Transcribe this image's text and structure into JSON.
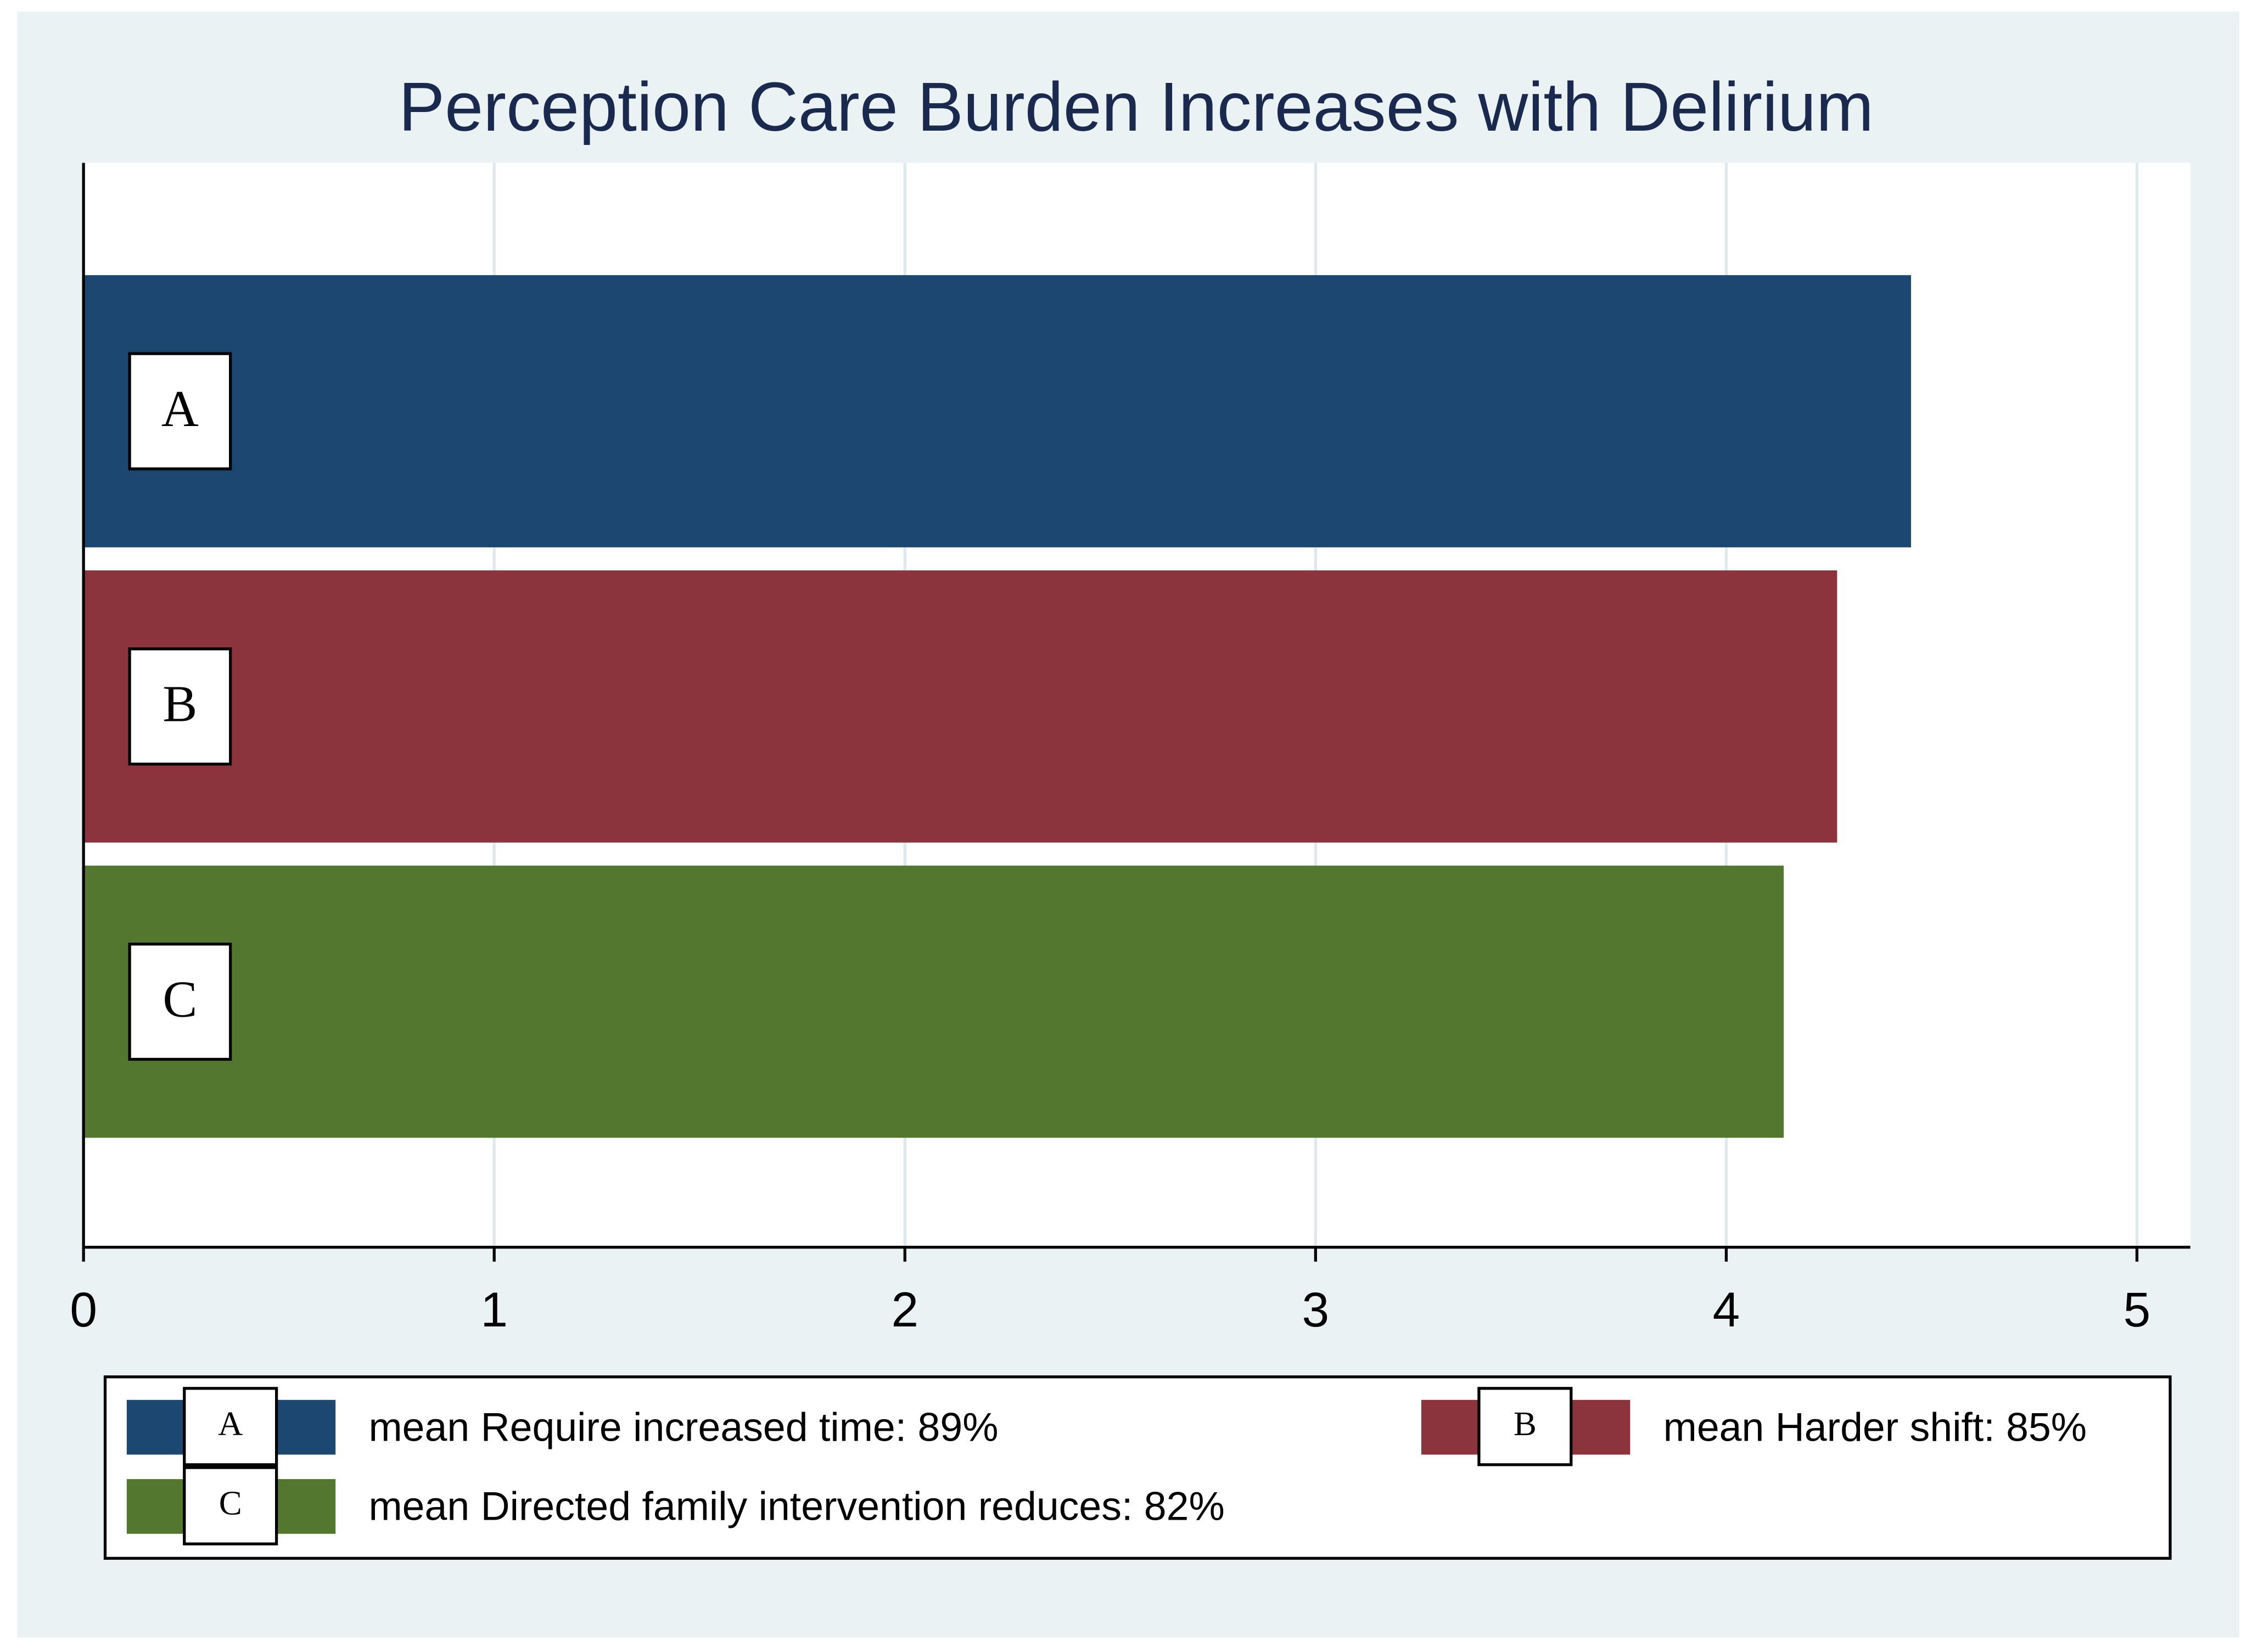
{
  "chart_data": {
    "type": "bar",
    "orientation": "horizontal",
    "title": "Perception Care Burden Increases with Delirium",
    "series": [
      {
        "name": "mean Require increased time: 89%",
        "label": "A",
        "color": "#1c4770",
        "values": [
          4.45
        ]
      },
      {
        "name": "mean Harder shift: 85%",
        "label": "B",
        "color": "#8b343d",
        "values": [
          4.27
        ]
      },
      {
        "name": "mean Directed family intervention reduces: 82%",
        "label": "C",
        "color": "#54772f",
        "values": [
          4.14
        ]
      }
    ],
    "xlim": [
      0,
      5.13
    ],
    "xticks": [
      0,
      1,
      2,
      3,
      4,
      5
    ],
    "grid": true
  }
}
